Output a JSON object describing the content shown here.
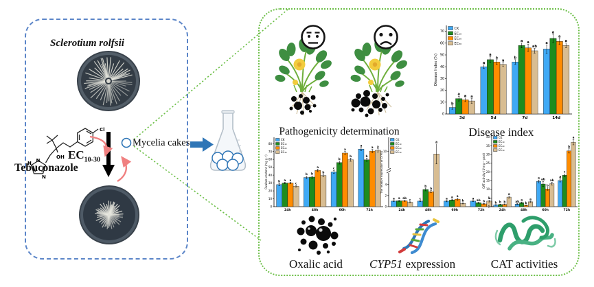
{
  "colors": {
    "box_blue": "#5B85C8",
    "box_green": "#6CBF47",
    "arrow_blue": "#2E75B6",
    "arrow_pink": "#F08080",
    "bar_ck": "#3FA9F5",
    "bar_ec10": "#1E8C1E",
    "bar_ec20": "#FF8C00",
    "bar_ec30": "#D8BD92"
  },
  "left_panel": {
    "title": "Sclerotium rolfsii",
    "ec_base": "EC",
    "ec_sub": "10-30",
    "compound_name": "Tebuconazole",
    "atoms": {
      "cl": "Cl",
      "oh": "OH",
      "n1": "N",
      "n2": "N",
      "n3": "N"
    }
  },
  "middle": {
    "mycelia_label": "Mycelia cakes"
  },
  "right_panel": {
    "pathogenicity_label": "Pathogenicity determination",
    "cyp51_italic": "CYP51",
    "cyp51_rest": " expression"
  },
  "chart_data": [
    {
      "id": "disease-index",
      "type": "bar",
      "title": "Disease index",
      "ylabel": "Disease Index (%)",
      "xlabel": "",
      "categories": [
        "3d",
        "5d",
        "7d",
        "14d"
      ],
      "ylim": [
        0,
        75
      ],
      "yticks": [
        0,
        10,
        20,
        30,
        40,
        50,
        60,
        70
      ],
      "grid": false,
      "legend_position": "top-left",
      "series": [
        {
          "name": "CK",
          "color": "#3FA9F5",
          "values": [
            5.5,
            40,
            44,
            55
          ],
          "errors": [
            1.5,
            1.5,
            2,
            3.5
          ],
          "letters": [
            "b",
            "a",
            "b",
            "a"
          ]
        },
        {
          "name": "EC₁₀",
          "color": "#1E8C1E",
          "values": [
            13,
            46,
            58,
            64
          ],
          "errors": [
            2,
            2.5,
            2,
            3.5
          ],
          "letters": [
            "a",
            "a",
            "a",
            "a"
          ]
        },
        {
          "name": "EC₂₀",
          "color": "#FF8C00",
          "values": [
            12,
            44,
            56,
            61.5
          ],
          "errors": [
            1.5,
            2,
            3,
            2.5
          ],
          "letters": [
            "a",
            "a",
            "a",
            "a"
          ]
        },
        {
          "name": "EC₃₀",
          "color": "#D8BD92",
          "values": [
            11,
            42,
            53.5,
            58
          ],
          "errors": [
            2,
            1.5,
            2,
            2
          ],
          "letters": [
            "a",
            "a",
            "ab",
            "a"
          ]
        }
      ]
    },
    {
      "id": "oxalic-acid",
      "type": "bar",
      "title": "Oxalic acid",
      "ylabel": "Oxalate content (mg g⁻¹)",
      "xlabel": "",
      "categories": [
        "24h",
        "48h",
        "60h",
        "72h"
      ],
      "ylim": [
        0,
        88
      ],
      "yticks": [
        0,
        10,
        20,
        30,
        40,
        50,
        60,
        70,
        80
      ],
      "grid": false,
      "legend_position": "top-left",
      "series": [
        {
          "name": "CK",
          "color": "#3FA9F5",
          "values": [
            28,
            37,
            44,
            73
          ],
          "errors": [
            1.5,
            1.5,
            2,
            2
          ],
          "letters": [
            "b",
            "b",
            "c",
            "a"
          ]
        },
        {
          "name": "EC₁₀",
          "color": "#1E8C1E",
          "values": [
            30,
            37.5,
            56,
            59.5
          ],
          "errors": [
            1,
            1.5,
            2,
            2
          ],
          "letters": [
            "a",
            "b",
            "b",
            "b"
          ]
        },
        {
          "name": "EC₂₀",
          "color": "#FF8C00",
          "values": [
            30,
            46,
            68,
            70.5
          ],
          "errors": [
            1,
            1.5,
            2,
            2
          ],
          "letters": [
            "a",
            "a",
            "a",
            "a"
          ]
        },
        {
          "name": "EC₃₀",
          "color": "#D8BD92",
          "values": [
            26,
            39.5,
            59.5,
            71.5
          ],
          "errors": [
            1,
            1.5,
            2,
            2
          ],
          "letters": [
            "c",
            "b",
            "b",
            "a"
          ]
        }
      ]
    },
    {
      "id": "cyp51-expression",
      "type": "bar",
      "title": "CYP51 expression",
      "ylabel": "The relative expression of CYP51",
      "xlabel": "",
      "categories": [
        "24h",
        "48h",
        "60h",
        "72h"
      ],
      "ylim": [
        0,
        12.5
      ],
      "yticks": [
        0,
        2,
        4,
        10
      ],
      "axis_break": true,
      "break_at": 6.8,
      "grid": false,
      "legend_position": "top-left",
      "series": [
        {
          "name": "CK",
          "color": "#3FA9F5",
          "values": [
            1,
            1,
            1,
            1
          ],
          "errors": [
            0.08,
            0.1,
            0.12,
            0.1
          ],
          "letters": [
            "a",
            "c",
            "a",
            "a"
          ]
        },
        {
          "name": "EC₁₀",
          "color": "#1E8C1E",
          "values": [
            1.05,
            3.1,
            1.2,
            0.7
          ],
          "errors": [
            0.1,
            0.25,
            0.15,
            0.1
          ],
          "letters": [
            "a",
            "b",
            "a",
            "ab"
          ]
        },
        {
          "name": "EC₂₀",
          "color": "#FF8C00",
          "values": [
            1.05,
            2.7,
            1.35,
            0.5
          ],
          "errors": [
            0.1,
            0.2,
            0.2,
            0.08
          ],
          "letters": [
            "ab",
            "b",
            "a",
            "b"
          ]
        },
        {
          "name": "EC₃₀",
          "color": "#D8BD92",
          "values": [
            0.8,
            9.5,
            0.6,
            1
          ],
          "errors": [
            0.08,
            1.8,
            0.1,
            0.15
          ],
          "letters": [
            "c",
            "a",
            "b",
            "a"
          ]
        }
      ]
    },
    {
      "id": "cat-activity",
      "type": "bar",
      "title": "CAT activities",
      "ylabel": "CAT activity (U mg⁻¹ prot)",
      "xlabel": "",
      "categories": [
        "24h",
        "48h",
        "60h",
        "72h"
      ],
      "ylim": [
        0,
        41
      ],
      "yticks": [
        0,
        5,
        10,
        15,
        20,
        25,
        30,
        35,
        40
      ],
      "grid": false,
      "legend_position": "top-left",
      "series": [
        {
          "name": "CK",
          "color": "#3FA9F5",
          "values": [
            1,
            1.5,
            14.5,
            15
          ],
          "errors": [
            0.2,
            0.3,
            0.8,
            0.8
          ],
          "letters": [
            "b",
            "ab",
            "a",
            "d"
          ]
        },
        {
          "name": "EC₁₀",
          "color": "#1E8C1E",
          "values": [
            1.2,
            2.3,
            13,
            18
          ],
          "errors": [
            0.3,
            0.4,
            1.5,
            0.8
          ],
          "letters": [
            "b",
            "a",
            "ab",
            "c"
          ]
        },
        {
          "name": "EC₂₀",
          "color": "#FF8C00",
          "values": [
            1.3,
            0.8,
            10.2,
            32
          ],
          "errors": [
            0.3,
            0.2,
            0.8,
            1.2
          ],
          "letters": [
            "b",
            "b",
            "b",
            "b"
          ]
        },
        {
          "name": "EC₃₀",
          "color": "#D8BD92",
          "values": [
            5.5,
            2.8,
            13.2,
            37
          ],
          "errors": [
            0.5,
            0.4,
            0.8,
            1.5
          ],
          "letters": [
            "a",
            "a",
            "ab",
            "a"
          ]
        }
      ]
    }
  ]
}
